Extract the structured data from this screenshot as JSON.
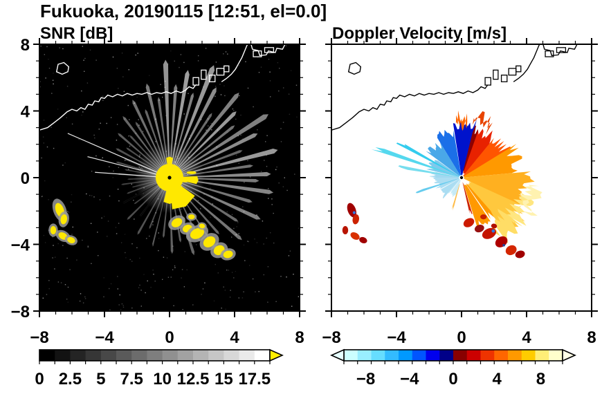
{
  "title": "Fukuoka, 20190115 [12:51, el=0.0]",
  "chart_data": [
    {
      "type": "heatmap",
      "variant": "radar_ppi",
      "title": "SNR [dB]",
      "units": "dB",
      "x_range": [
        -8,
        8
      ],
      "y_range": [
        -8,
        8
      ],
      "x_tick_values": [
        -8,
        -4,
        0,
        4,
        8
      ],
      "x_tick_labels": [
        "−8",
        "−4",
        "0",
        "4",
        "8"
      ],
      "y_tick_values": [
        8,
        4,
        0,
        -4,
        -8
      ],
      "y_tick_labels": [
        "8",
        "4",
        "0",
        "−4",
        "−8"
      ],
      "background": "#000000",
      "colorbar": {
        "min": 0,
        "max": 18.75,
        "tick_values": [
          0,
          2.5,
          5,
          7.5,
          10,
          12.5,
          15,
          17.5
        ],
        "tick_labels": [
          "0",
          "2.5",
          "5",
          "7.5",
          "10",
          "12.5",
          "15",
          "17.5"
        ],
        "colors": [
          "#000000",
          "#121212",
          "#242424",
          "#363636",
          "#484848",
          "#5a5a5a",
          "#6c6c6c",
          "#7e7e7e",
          "#909090",
          "#a2a2a2",
          "#b4b4b4",
          "#c6c6c6",
          "#d8d8d8",
          "#eaeaea",
          "#ffffff"
        ],
        "over_color": "#ffee00"
      },
      "beams": [
        [
          2,
          6.0,
          2.4,
          0.55
        ],
        [
          8,
          5.0,
          2.0,
          0.45
        ],
        [
          14,
          6.6,
          2.6,
          0.6
        ],
        [
          20,
          4.6,
          2.0,
          0.4
        ],
        [
          26,
          5.8,
          2.4,
          0.55
        ],
        [
          32,
          6.9,
          2.6,
          0.5
        ],
        [
          38,
          4.9,
          2.0,
          0.45
        ],
        [
          44,
          5.5,
          2.4,
          0.6
        ],
        [
          50,
          6.4,
          2.4,
          0.5
        ],
        [
          56,
          4.5,
          2.0,
          0.42
        ],
        [
          62,
          5.9,
          2.4,
          0.55
        ],
        [
          68,
          7.0,
          2.6,
          0.6
        ],
        [
          74,
          5.1,
          2.0,
          0.5
        ],
        [
          80,
          6.3,
          2.4,
          0.62
        ],
        [
          86,
          5.4,
          2.2,
          0.5
        ],
        [
          92,
          6.8,
          2.6,
          0.58
        ],
        [
          98,
          4.7,
          2.0,
          0.42
        ],
        [
          104,
          5.6,
          2.2,
          0.48
        ],
        [
          110,
          4.2,
          2.0,
          0.4
        ],
        [
          116,
          5.0,
          2.2,
          0.44
        ],
        [
          122,
          3.8,
          2.0,
          0.36
        ],
        [
          128,
          4.5,
          2.0,
          0.4
        ],
        [
          134,
          3.4,
          2.0,
          0.32
        ],
        [
          140,
          4.0,
          2.0,
          0.36
        ],
        [
          146,
          3.1,
          2.0,
          0.3
        ],
        [
          152,
          3.6,
          2.0,
          0.32
        ],
        [
          158,
          2.9,
          1.8,
          0.28
        ],
        [
          164,
          3.3,
          1.8,
          0.3
        ],
        [
          170,
          2.7,
          1.8,
          0.26
        ],
        [
          176,
          3.1,
          1.8,
          0.28
        ],
        [
          182,
          2.5,
          1.8,
          0.24
        ],
        [
          188,
          2.9,
          1.8,
          0.26
        ],
        [
          194,
          2.3,
          1.8,
          0.24
        ],
        [
          200,
          2.7,
          1.8,
          0.26
        ],
        [
          208,
          3.2,
          1.8,
          0.28
        ],
        [
          216,
          2.6,
          1.8,
          0.26
        ],
        [
          224,
          3.5,
          2.0,
          0.3
        ],
        [
          232,
          2.9,
          1.8,
          0.28
        ],
        [
          240,
          3.8,
          2.0,
          0.32
        ],
        [
          248,
          3.2,
          1.8,
          0.3
        ],
        [
          256,
          4.1,
          2.0,
          0.36
        ],
        [
          264,
          3.5,
          2.0,
          0.34
        ],
        [
          272,
          4.4,
          2.0,
          0.38
        ],
        [
          280,
          3.8,
          2.0,
          0.36
        ],
        [
          288,
          4.7,
          2.2,
          0.4
        ],
        [
          296,
          4.1,
          2.0,
          0.38
        ],
        [
          304,
          5.2,
          2.2,
          0.44
        ],
        [
          312,
          4.4,
          2.0,
          0.4
        ],
        [
          320,
          5.6,
          2.2,
          0.46
        ],
        [
          328,
          4.8,
          2.0,
          0.42
        ],
        [
          336,
          5.9,
          2.4,
          0.5
        ],
        [
          344,
          5.1,
          2.2,
          0.46
        ],
        [
          352,
          6.2,
          2.4,
          0.52
        ],
        [
          358,
          5.3,
          2.2,
          0.48
        ]
      ],
      "bright_rays": [
        [
          157,
          6.8
        ],
        [
          166,
          5.2
        ],
        [
          176,
          4.6
        ]
      ],
      "shadow_rays": [
        [
          208,
          8.3
        ],
        [
          232,
          8.3
        ],
        [
          257,
          6.0
        ],
        [
          305,
          8.3
        ]
      ],
      "core": {
        "color": "#ffe800",
        "radius": 0.85,
        "wedges": [
          [
            300,
            25,
            1.9
          ],
          [
            270,
            14,
            1.5
          ],
          [
            355,
            8,
            1.7
          ],
          [
            90,
            10,
            1.2
          ]
        ],
        "dashes": [
          [
            1.35,
            0.3,
            0.3,
            0.09
          ],
          [
            0.95,
            -0.2,
            0.22,
            0.08
          ]
        ]
      },
      "clutter_color": "#ffe800"
    },
    {
      "type": "heatmap",
      "variant": "radar_ppi",
      "title": "Doppler Velocity [m/s]",
      "units": "m/s",
      "x_range": [
        -8,
        8
      ],
      "y_range": [
        -8,
        8
      ],
      "x_tick_values": [
        -8,
        -4,
        0,
        4,
        8
      ],
      "x_tick_labels": [
        "−8",
        "−4",
        "0",
        "4",
        "8"
      ],
      "y_tick_values": [
        8,
        4,
        0,
        -4,
        -8
      ],
      "y_tick_labels": [
        "8",
        "4",
        "0",
        "−4",
        "−8"
      ],
      "background": "#ffffff",
      "colorbar": {
        "min": -10,
        "max": 10,
        "tick_values": [
          -8,
          -4,
          0,
          4,
          8
        ],
        "tick_labels": [
          "−8",
          "−4",
          "0",
          "4",
          "8"
        ],
        "colors": [
          "#ccffff",
          "#99eeff",
          "#66ddff",
          "#33bbff",
          "#0099ff",
          "#0055ff",
          "#0000ee",
          "#000088",
          "#880000",
          "#cc0000",
          "#ee3300",
          "#ff6600",
          "#ff9900",
          "#ffcc00",
          "#ffee77",
          "#ffffcc"
        ],
        "under_color": "#e6ffff",
        "over_color": "#ffffe6"
      },
      "sectors": [
        [
          75,
          100,
          0,
          3.5,
          "#0013cc"
        ],
        [
          100,
          122,
          0,
          3.0,
          "#1b6fe8"
        ],
        [
          122,
          145,
          0,
          2.6,
          "#4aa8e8"
        ],
        [
          145,
          168,
          0,
          2.2,
          "#7fc9ec"
        ],
        [
          168,
          180,
          0,
          1.9,
          "#a0d8f0"
        ],
        [
          180,
          228,
          0,
          1.7,
          "#abddf2"
        ],
        [
          228,
          252,
          0,
          1.25,
          "#c6eaf6"
        ],
        [
          48,
          72,
          0.3,
          3.3,
          "#e82200"
        ],
        [
          30,
          50,
          0,
          3.4,
          "#ff5500"
        ],
        [
          5,
          32,
          0,
          3.8,
          "#ff9900"
        ],
        [
          -25,
          6,
          0,
          4.3,
          "#ffb020"
        ],
        [
          -50,
          -24,
          0.6,
          4.5,
          "#ffc83e"
        ],
        [
          -72,
          -48,
          0.5,
          3.2,
          "#ff9900"
        ],
        [
          70,
          76,
          0.4,
          3.2,
          "#8e0000"
        ],
        [
          -40,
          -14,
          3.7,
          4.7,
          "#ffe680"
        ],
        [
          -58,
          -38,
          3.4,
          4.7,
          "#ffdd66"
        ],
        [
          -28,
          -6,
          4.2,
          5.0,
          "#fff2b0"
        ],
        [
          60,
          78,
          3.3,
          4.1,
          "#e84400"
        ],
        [
          84,
          96,
          3.3,
          3.9,
          "#ff6600"
        ]
      ],
      "streaks": [
        [
          150,
          153,
          0,
          4.3,
          "#33ccee"
        ],
        [
          160,
          163,
          0,
          5.7,
          "#55d8ee"
        ],
        [
          169,
          172,
          0,
          3.8,
          "#77ddee"
        ],
        [
          196,
          199,
          0,
          2.9,
          "#66ccee"
        ],
        [
          283,
          287,
          0.3,
          2.4,
          "#cc2200"
        ],
        [
          252,
          255,
          0.4,
          2.2,
          "#ffbb44"
        ]
      ],
      "clutter_colors": [
        "#a00000",
        "#cc2200",
        "#b81400",
        "#d83000",
        "#a00000",
        "#cc1a00",
        "#981010",
        "#c41400",
        "#ae0000",
        "#d42600",
        "#a00000",
        "#c82200",
        "#b01000"
      ],
      "accents": [
        [
          -6.6,
          -2.1,
          0.09,
          "#3377dd"
        ],
        [
          1.95,
          -3.2,
          0.1,
          "#3377dd"
        ],
        [
          2.6,
          -4.05,
          0.08,
          "#224499"
        ]
      ]
    }
  ],
  "coastline": {
    "paths": [
      [
        [
          -8,
          2.85
        ],
        [
          -7.5,
          3.0
        ],
        [
          -7.1,
          3.3
        ],
        [
          -6.7,
          3.6
        ],
        [
          -6.3,
          3.95
        ],
        [
          -6.0,
          4.1
        ],
        [
          -5.7,
          4.0
        ],
        [
          -5.45,
          4.2
        ],
        [
          -5.2,
          4.1
        ],
        [
          -5.0,
          4.4
        ],
        [
          -4.75,
          4.35
        ],
        [
          -4.6,
          4.6
        ],
        [
          -4.35,
          4.55
        ],
        [
          -4.2,
          4.8
        ],
        [
          -4.0,
          4.75
        ],
        [
          -3.8,
          4.95
        ],
        [
          -3.5,
          4.85
        ],
        [
          -3.2,
          5.0
        ],
        [
          -2.9,
          4.9
        ],
        [
          -2.6,
          5.05
        ],
        [
          -2.3,
          4.95
        ],
        [
          -2.0,
          5.05
        ],
        [
          -1.7,
          5.0
        ],
        [
          -1.4,
          5.1
        ],
        [
          -1.1,
          5.0
        ],
        [
          -0.8,
          5.1
        ],
        [
          -0.5,
          5.05
        ],
        [
          -0.2,
          5.15
        ],
        [
          0.1,
          5.05
        ],
        [
          0.4,
          5.2
        ],
        [
          0.7,
          5.1
        ],
        [
          1.0,
          5.25
        ],
        [
          1.2,
          5.45
        ],
        [
          1.45,
          5.35
        ],
        [
          1.6,
          5.55
        ]
      ],
      [
        [
          3.2,
          5.75
        ],
        [
          3.5,
          5.95
        ],
        [
          3.8,
          6.2
        ],
        [
          4.05,
          6.5
        ],
        [
          4.25,
          6.85
        ],
        [
          4.45,
          7.2
        ],
        [
          4.6,
          7.55
        ],
        [
          4.75,
          7.9
        ],
        [
          4.82,
          8.05
        ]
      ],
      [
        [
          5.0,
          8.05
        ],
        [
          5.1,
          7.7
        ],
        [
          5.45,
          7.62
        ],
        [
          5.55,
          7.32
        ],
        [
          5.95,
          7.36
        ],
        [
          6.08,
          7.6
        ],
        [
          6.5,
          7.5
        ],
        [
          6.6,
          7.76
        ],
        [
          6.95,
          7.7
        ],
        [
          7.08,
          7.95
        ],
        [
          7.1,
          8.05
        ]
      ]
    ],
    "island": [
      [
        -6.95,
        6.35
      ],
      [
        -6.6,
        6.2
      ],
      [
        -6.25,
        6.35
      ],
      [
        -6.2,
        6.65
      ],
      [
        -6.5,
        6.9
      ],
      [
        -6.85,
        6.8
      ]
    ],
    "structures": [
      [
        1.45,
        5.55,
        0.35,
        0.45
      ],
      [
        1.95,
        5.9,
        0.3,
        0.55
      ],
      [
        2.45,
        5.75,
        0.35,
        0.4
      ],
      [
        2.9,
        6.15,
        0.45,
        0.4
      ],
      [
        3.35,
        6.35,
        0.3,
        0.35
      ],
      [
        5.15,
        7.25,
        0.5,
        0.35
      ],
      [
        5.85,
        7.5,
        0.55,
        0.3
      ]
    ]
  },
  "clutter_patches": [
    [
      -6.75,
      -1.95,
      0.25,
      0.45,
      -20
    ],
    [
      -6.5,
      -2.5,
      0.2,
      0.3,
      10
    ],
    [
      -7.15,
      -3.15,
      0.18,
      0.25,
      0
    ],
    [
      -6.55,
      -3.5,
      0.3,
      0.2,
      30
    ],
    [
      -6.05,
      -3.75,
      0.25,
      0.18,
      20
    ],
    [
      0.45,
      -2.7,
      0.35,
      0.25,
      -30
    ],
    [
      1.1,
      -3.05,
      0.3,
      0.22,
      -20
    ],
    [
      1.7,
      -3.35,
      0.45,
      0.3,
      -25
    ],
    [
      2.45,
      -3.85,
      0.4,
      0.3,
      -35
    ],
    [
      3.05,
      -4.35,
      0.35,
      0.28,
      -30
    ],
    [
      3.6,
      -4.6,
      0.3,
      0.22,
      -15
    ],
    [
      1.35,
      -2.35,
      0.2,
      0.15,
      0
    ],
    [
      2.0,
      -2.9,
      0.18,
      0.14,
      10
    ]
  ]
}
